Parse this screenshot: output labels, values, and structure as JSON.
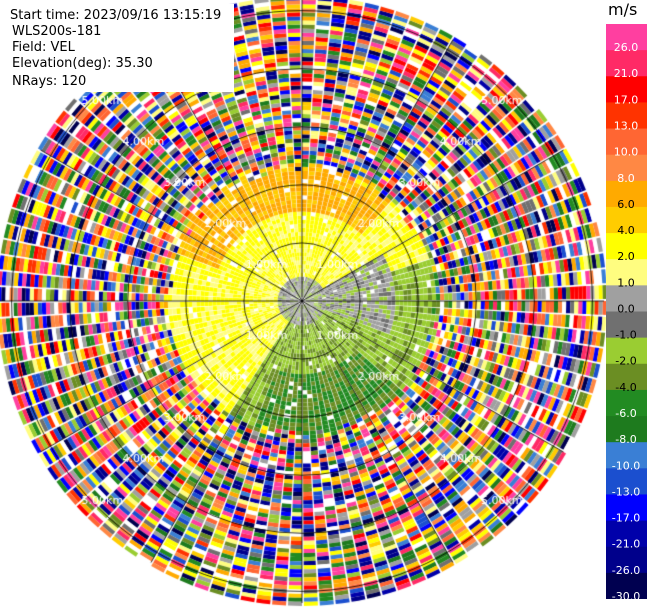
{
  "header": {
    "start_time": "Start time: 2023/09/16 13:15:19",
    "site": "WLS200s-181",
    "field": "Field: VEL",
    "elevation": "Elevation(deg): 35.30",
    "nrays": "NRays: 120"
  },
  "colorbar": {
    "unit": "m/s",
    "ticks": [
      "26.0",
      "21.0",
      "17.0",
      "13.0",
      "10.0",
      "8.0",
      "6.0",
      "4.0",
      "2.0",
      "1.0",
      "0.0",
      "-1.0",
      "-2.0",
      "-4.0",
      "-6.0",
      "-8.0",
      "-10.0",
      "-13.0",
      "-17.0",
      "-21.0",
      "-26.0",
      "-30.0"
    ],
    "colors": [
      "#ff3fa0",
      "#ff2a66",
      "#ff0000",
      "#ff3300",
      "#ff6633",
      "#ff8844",
      "#ffaa00",
      "#ffcc00",
      "#ffff00",
      "#fffd80",
      "#a0a0a0",
      "#707070",
      "#9acd32",
      "#6b8e23",
      "#228b22",
      "#1e7b1e",
      "#3a7fd5",
      "#1b4fcf",
      "#0000ff",
      "#0000aa",
      "#00008b",
      "#000050"
    ]
  },
  "chart_data": {
    "type": "heatmap",
    "projection": "PPI (plan position indicator)",
    "field": "VEL",
    "units": "m/s",
    "nrays": 120,
    "elevation_deg": 35.3,
    "value_range": [
      -30.0,
      26.0
    ],
    "range_ring_labels": [
      "1.00km",
      "2.00km",
      "3.00km",
      "4.00km",
      "5.00km"
    ],
    "range_rings_km": [
      1,
      2,
      3,
      4,
      5
    ],
    "azimuth_lines_deg": [
      0,
      30,
      60,
      90,
      120,
      150,
      180,
      210,
      240,
      270,
      300,
      330
    ],
    "max_range_km": 5.2,
    "valid_range_km": 2.2,
    "color_of_ring_labels": "#ffffff"
  }
}
